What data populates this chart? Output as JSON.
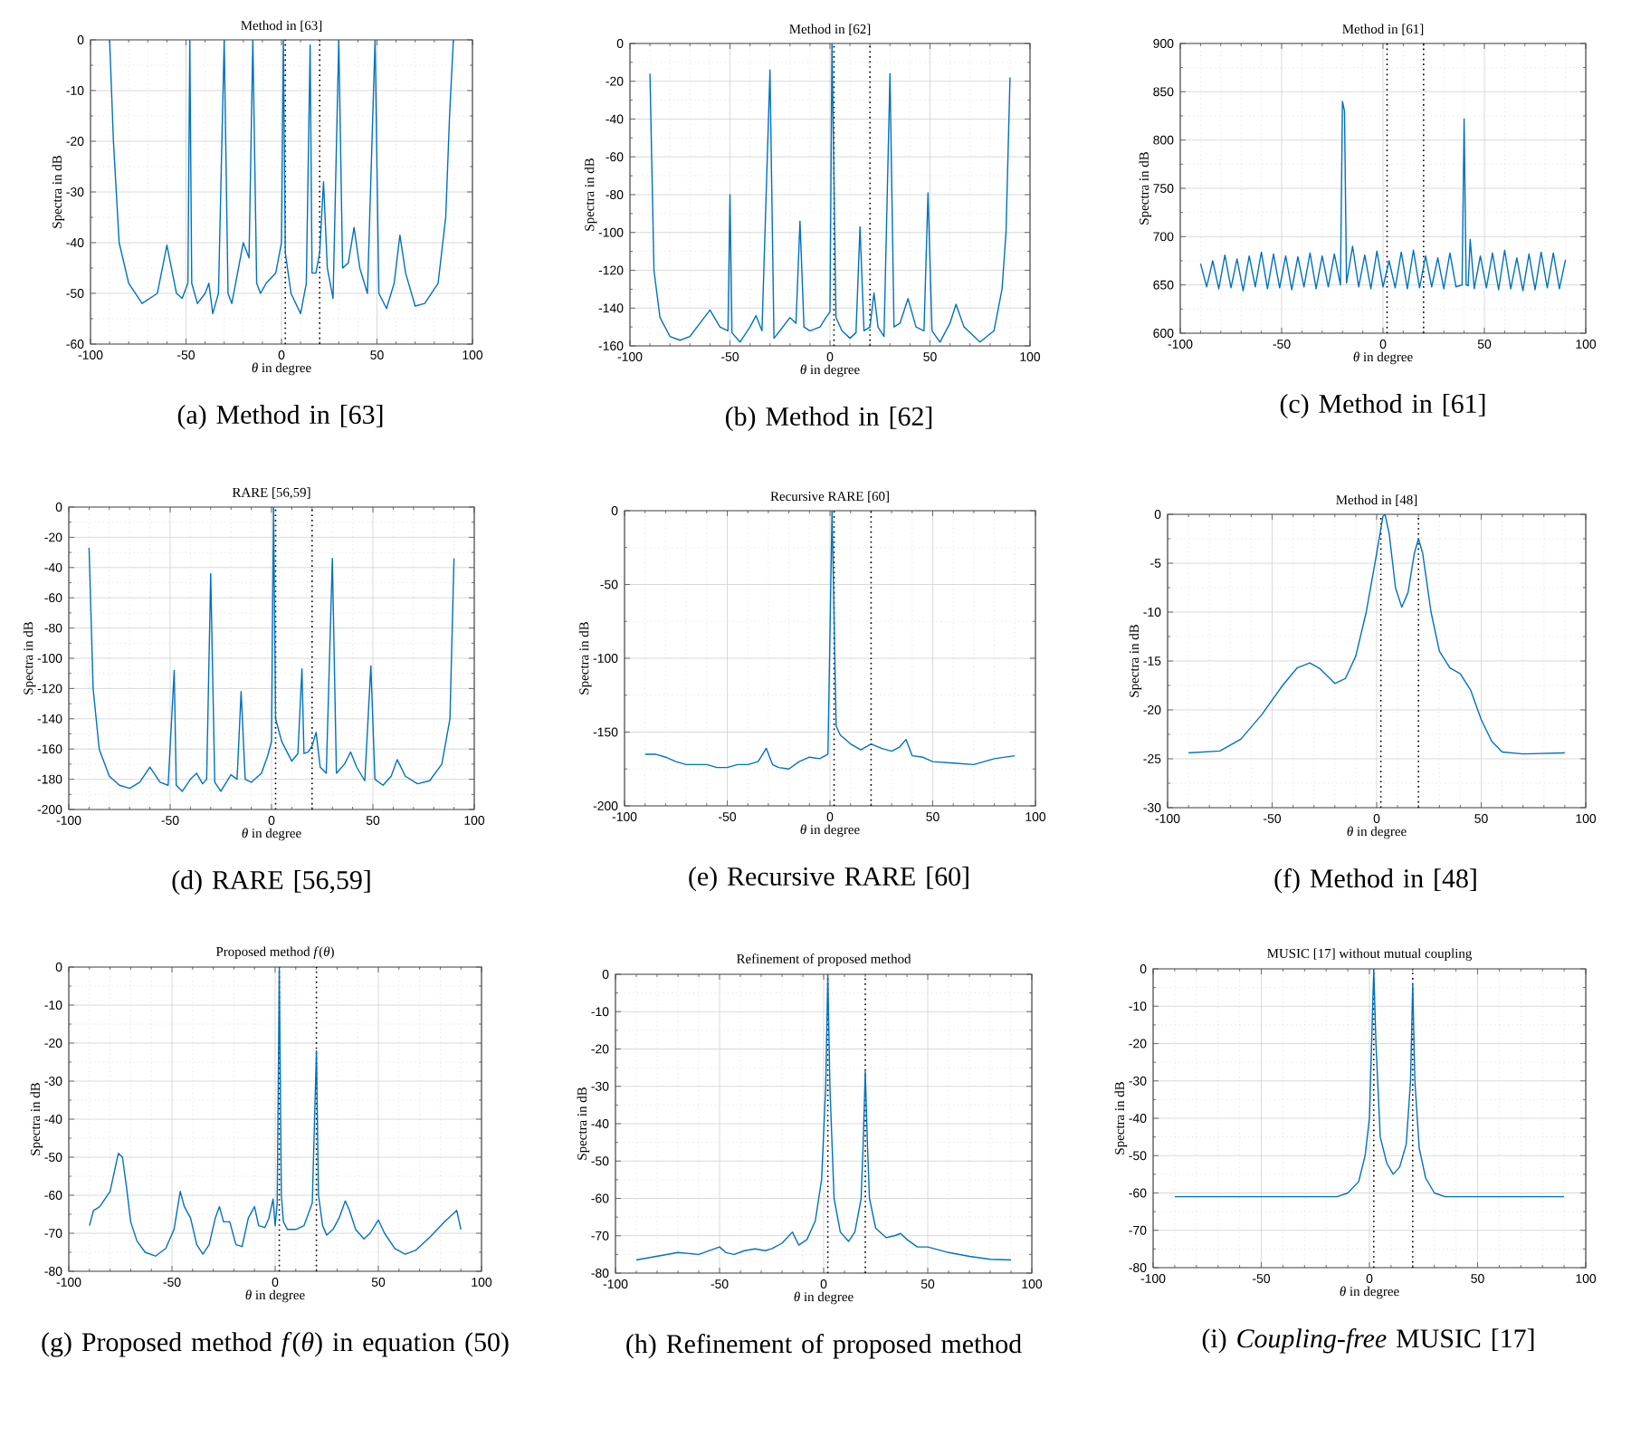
{
  "chart_data": [
    {
      "type": "line",
      "title": "Method in [63]",
      "xlabel": "*θ* in degree",
      "ylabel": "Spectra in dB",
      "xlim": [
        -100,
        100
      ],
      "ylim": [
        -60,
        0
      ],
      "xticks": [
        -100,
        -50,
        0,
        50,
        100
      ],
      "yticks": [
        -60,
        -50,
        -40,
        -30,
        -20,
        -10,
        0
      ],
      "grid": true,
      "color": "#0072bd",
      "x": [
        -90,
        -88,
        -85,
        -80,
        -73,
        -65,
        -60,
        -55,
        -52,
        -49,
        -48,
        -47,
        -44,
        -40,
        -38,
        -36,
        -33,
        -30,
        -28,
        -26,
        -24,
        -20,
        -17,
        -15,
        -13,
        -11,
        -8,
        -3,
        0,
        1,
        2,
        5,
        10,
        13,
        15,
        16,
        18,
        20,
        22,
        24,
        27,
        30,
        32,
        35,
        38,
        41,
        45,
        49,
        51,
        55,
        59,
        62,
        65,
        70,
        75,
        82,
        86,
        88,
        90
      ],
      "values": [
        0,
        -20,
        -40,
        -48,
        -52,
        -50,
        -40.5,
        -50,
        -51,
        -48,
        0,
        -48,
        -52,
        -50,
        -48,
        -54,
        -50,
        0,
        -50,
        -52,
        -48,
        -40,
        -43,
        0,
        -48,
        -50,
        -48,
        -46,
        -40,
        0,
        -42,
        -50,
        -54,
        -48,
        -1,
        -46,
        -46,
        -42,
        -28,
        -45,
        -51,
        0,
        -45,
        -44,
        -37,
        -45,
        -50,
        0,
        -50,
        -53,
        -48,
        -38.5,
        -46,
        -52.5,
        -52,
        -48,
        -35,
        -15,
        0
      ],
      "ref_lines": [
        {
          "axis": "x",
          "value": 2,
          "line_style": "dotted",
          "color": "#000000"
        },
        {
          "axis": "x",
          "value": 20,
          "line_style": "dotted",
          "color": "#000000"
        }
      ],
      "annotations": [
        "(a) Method in [63]"
      ]
    },
    {
      "type": "line",
      "title": "Method in [62]",
      "xlabel": "*θ* in degree",
      "ylabel": "Spectra in dB",
      "xlim": [
        -100,
        100
      ],
      "ylim": [
        -160,
        0
      ],
      "xticks": [
        -100,
        -50,
        0,
        50,
        100
      ],
      "yticks": [
        -160,
        -140,
        -120,
        -100,
        -80,
        -60,
        -40,
        -20,
        0
      ],
      "grid": true,
      "color": "#0072bd",
      "x": [
        -90,
        -88,
        -85,
        -80,
        -75,
        -70,
        -65,
        -60,
        -55,
        -51,
        -50,
        -49,
        -45,
        -40,
        -37,
        -34,
        -30,
        -28,
        -25,
        -20,
        -17,
        -15,
        -13,
        -10,
        -5,
        -2,
        0,
        1,
        3,
        6,
        10,
        13,
        15,
        17,
        20,
        22,
        24,
        27,
        30,
        32,
        35,
        39,
        43,
        47,
        49,
        51,
        55,
        60,
        63,
        67,
        75,
        82,
        86,
        88,
        90
      ],
      "values": [
        -16,
        -120,
        -145,
        -155,
        -157,
        -155,
        -148,
        -141,
        -150,
        -152,
        -80,
        -153,
        -158,
        -150,
        -144,
        -152,
        -14,
        -156,
        -152,
        -145,
        -148,
        -94,
        -150,
        -152,
        -150,
        -145,
        -142,
        0,
        -145,
        -152,
        -156,
        -153,
        -97,
        -152,
        -150,
        -132,
        -150,
        -155,
        -16,
        -150,
        -148,
        -135,
        -150,
        -152,
        -79,
        -152,
        -158,
        -148,
        -138,
        -150,
        -158,
        -152,
        -130,
        -100,
        -18
      ],
      "ref_lines": [
        {
          "axis": "x",
          "value": 2,
          "line_style": "dotted",
          "color": "#000000"
        },
        {
          "axis": "x",
          "value": 20,
          "line_style": "dotted",
          "color": "#000000"
        }
      ],
      "annotations": [
        "(b) Method in [62]"
      ]
    },
    {
      "type": "line",
      "title": "Method in [61]",
      "xlabel": "*θ* in degree",
      "ylabel": "Spectra in dB",
      "xlim": [
        -100,
        100
      ],
      "ylim": [
        600,
        900
      ],
      "xticks": [
        -100,
        -50,
        0,
        50,
        100
      ],
      "yticks": [
        600,
        650,
        700,
        750,
        800,
        850,
        900
      ],
      "grid": true,
      "color": "#0072bd",
      "x": [
        -90,
        -87,
        -84,
        -81,
        -78,
        -75,
        -72,
        -69,
        -66,
        -63,
        -60,
        -57,
        -54,
        -51,
        -48,
        -45,
        -42,
        -39,
        -36,
        -33,
        -30,
        -27,
        -24,
        -21,
        -20,
        -19,
        -18,
        -15,
        -12,
        -9,
        -6,
        -3,
        0,
        3,
        6,
        9,
        12,
        15,
        18,
        21,
        24,
        27,
        30,
        33,
        36,
        39,
        40,
        41,
        42,
        43,
        45,
        48,
        51,
        54,
        57,
        60,
        63,
        66,
        69,
        72,
        75,
        78,
        81,
        84,
        87,
        90
      ],
      "values": [
        672,
        648,
        675,
        646,
        681,
        647,
        677,
        644,
        680,
        648,
        684,
        646,
        682,
        647,
        680,
        645,
        679,
        648,
        683,
        646,
        680,
        648,
        682,
        650,
        840,
        830,
        652,
        690,
        648,
        681,
        646,
        685,
        648,
        675,
        647,
        684,
        646,
        686,
        647,
        680,
        648,
        678,
        646,
        683,
        648,
        650,
        822,
        650,
        649,
        697,
        646,
        680,
        647,
        683,
        645,
        686,
        646,
        678,
        644,
        682,
        645,
        684,
        647,
        683,
        646,
        676
      ],
      "ref_lines": [
        {
          "axis": "x",
          "value": 2,
          "line_style": "dotted",
          "color": "#000000"
        },
        {
          "axis": "x",
          "value": 20,
          "line_style": "dotted",
          "color": "#000000"
        }
      ],
      "annotations": [
        "(c) Method in [61]"
      ]
    },
    {
      "type": "line",
      "title": "RARE [56,59]",
      "xlabel": "*θ* in degree",
      "ylabel": "Spectra in dB",
      "xlim": [
        -100,
        100
      ],
      "ylim": [
        -200,
        0
      ],
      "xticks": [
        -100,
        -50,
        0,
        50,
        100
      ],
      "yticks": [
        -200,
        -180,
        -160,
        -140,
        -120,
        -100,
        -80,
        -60,
        -40,
        -20,
        0
      ],
      "grid": true,
      "color": "#0072bd",
      "x": [
        -90,
        -88,
        -85,
        -80,
        -75,
        -70,
        -65,
        -60,
        -55,
        -51,
        -48,
        -47,
        -44,
        -40,
        -37,
        -34,
        -32,
        -30,
        -28,
        -25,
        -20,
        -17,
        -15,
        -13,
        -10,
        -5,
        -2,
        0,
        1,
        2,
        5,
        10,
        13,
        15,
        16,
        18,
        20,
        22,
        24,
        27,
        30,
        32,
        36,
        39,
        42,
        46,
        49,
        51,
        55,
        59,
        62,
        66,
        72,
        78,
        84,
        88,
        90
      ],
      "values": [
        -27,
        -120,
        -160,
        -178,
        -184,
        -186,
        -182,
        -172,
        -182,
        -184,
        -108,
        -184,
        -188,
        -180,
        -176,
        -183,
        -180,
        -44,
        -182,
        -188,
        -177,
        -180,
        -122,
        -180,
        -182,
        -176,
        -165,
        -155,
        0,
        -140,
        -155,
        -168,
        -163,
        -107,
        -163,
        -162,
        -158,
        -149,
        -172,
        -176,
        -34,
        -176,
        -170,
        -162,
        -172,
        -181,
        -105,
        -180,
        -184,
        -178,
        -167,
        -178,
        -183,
        -181,
        -170,
        -140,
        -34
      ],
      "ref_lines": [
        {
          "axis": "x",
          "value": 2,
          "line_style": "dotted",
          "color": "#000000"
        },
        {
          "axis": "x",
          "value": 20,
          "line_style": "dotted",
          "color": "#000000"
        }
      ],
      "annotations": [
        "(d) RARE [56,59]"
      ]
    },
    {
      "type": "line",
      "title": "Recursive RARE [60]",
      "xlabel": "*θ* in degree",
      "ylabel": "Spectra in dB",
      "xlim": [
        -100,
        100
      ],
      "ylim": [
        -200,
        0
      ],
      "xticks": [
        -100,
        -50,
        0,
        50,
        100
      ],
      "yticks": [
        -200,
        -150,
        -100,
        -50,
        0
      ],
      "grid": true,
      "color": "#0072bd",
      "x": [
        -90,
        -85,
        -80,
        -75,
        -70,
        -60,
        -55,
        -50,
        -45,
        -40,
        -35,
        -31,
        -28,
        -25,
        -20,
        -15,
        -10,
        -5,
        -1,
        1,
        3,
        5,
        10,
        15,
        20,
        25,
        30,
        34,
        37,
        40,
        45,
        50,
        60,
        70,
        80,
        90
      ],
      "values": [
        -165,
        -165,
        -167,
        -170,
        -172,
        -172,
        -174,
        -174,
        -172,
        -172,
        -170,
        -161,
        -172,
        -174,
        -175,
        -170,
        -167,
        -168,
        -165,
        0,
        -146,
        -152,
        -158,
        -162,
        -158,
        -161,
        -163,
        -160,
        -155,
        -166,
        -167,
        -170,
        -171,
        -172,
        -168,
        -166
      ],
      "ref_lines": [
        {
          "axis": "x",
          "value": 2,
          "line_style": "dotted",
          "color": "#000000"
        },
        {
          "axis": "x",
          "value": 20,
          "line_style": "dotted",
          "color": "#000000"
        }
      ],
      "annotations": [
        "(e) Recursive RARE [60]"
      ]
    },
    {
      "type": "line",
      "title": "Method in [48]",
      "xlabel": "*θ* in degree",
      "ylabel": "Spectra in dB",
      "xlim": [
        -100,
        100
      ],
      "ylim": [
        -30,
        0
      ],
      "xticks": [
        -100,
        -50,
        0,
        50,
        100
      ],
      "yticks": [
        -30,
        -25,
        -20,
        -15,
        -10,
        -5,
        0
      ],
      "grid": true,
      "color": "#0072bd",
      "x": [
        -90,
        -75,
        -65,
        -55,
        -45,
        -38,
        -32,
        -27,
        -20,
        -15,
        -10,
        -5,
        0,
        3,
        4,
        6,
        9,
        12,
        15,
        18,
        20,
        22,
        26,
        30,
        35,
        40,
        45,
        50,
        55,
        60,
        70,
        90
      ],
      "values": [
        -24.4,
        -24.2,
        -23,
        -20.5,
        -17.5,
        -15.7,
        -15.2,
        -15.8,
        -17.3,
        -16.8,
        -14.5,
        -10,
        -4,
        -0.2,
        0,
        -2,
        -7.5,
        -9.5,
        -8,
        -4,
        -2.5,
        -4,
        -10,
        -14,
        -15.7,
        -16.3,
        -18,
        -21,
        -23.2,
        -24.3,
        -24.5,
        -24.4
      ],
      "ref_lines": [
        {
          "axis": "x",
          "value": 2,
          "line_style": "dotted",
          "color": "#000000"
        },
        {
          "axis": "x",
          "value": 20,
          "line_style": "dotted",
          "color": "#000000"
        }
      ],
      "annotations": [
        "(f) Method in [48]"
      ]
    },
    {
      "type": "line",
      "title": "Proposed method *f*(*θ*)",
      "xlabel": "*θ* in degree",
      "ylabel": "Spectra in dB",
      "xlim": [
        -100,
        100
      ],
      "ylim": [
        -80,
        0
      ],
      "xticks": [
        -100,
        -50,
        0,
        50,
        100
      ],
      "yticks": [
        -80,
        -70,
        -60,
        -50,
        -40,
        -30,
        -20,
        -10,
        0
      ],
      "grid": true,
      "color": "#0072bd",
      "x": [
        -90,
        -88,
        -85,
        -80,
        -76,
        -74,
        -72,
        -70,
        -67,
        -63,
        -58,
        -53,
        -49,
        -46,
        -44,
        -41,
        -38,
        -35,
        -32,
        -29,
        -27,
        -25,
        -22,
        -19,
        -16,
        -13,
        -10,
        -8,
        -5,
        -3,
        -1,
        0,
        1,
        2,
        3,
        4,
        6,
        10,
        14,
        18,
        20,
        21,
        23,
        25,
        28,
        31,
        34,
        36,
        39,
        43,
        46,
        50,
        53,
        58,
        63,
        68,
        75,
        82,
        88,
        90
      ],
      "values": [
        -68,
        -64,
        -63,
        -59,
        -49,
        -50,
        -58,
        -67,
        -72,
        -75,
        -76,
        -74,
        -69,
        -59,
        -63,
        -66,
        -73,
        -75.5,
        -73,
        -66,
        -63,
        -67,
        -67,
        -73,
        -73.5,
        -66,
        -63,
        -68,
        -68.5,
        -66,
        -61,
        -68,
        -62,
        0,
        -60,
        -67,
        -69,
        -69,
        -68,
        -62,
        -22,
        -60,
        -68,
        -70.5,
        -69,
        -66,
        -61.5,
        -64,
        -69,
        -71.5,
        -70,
        -66.5,
        -70,
        -74,
        -75.5,
        -74.5,
        -71,
        -67,
        -64,
        -69
      ],
      "ref_lines": [
        {
          "axis": "x",
          "value": 2,
          "line_style": "dotted",
          "color": "#000000"
        },
        {
          "axis": "x",
          "value": 20,
          "line_style": "dotted",
          "color": "#000000"
        }
      ],
      "annotations": [
        "(g) Proposed method *f*(*θ*) in equation (50)"
      ]
    },
    {
      "type": "line",
      "title": "Refinement of proposed method",
      "xlabel": "*θ* in degree",
      "ylabel": "Spectra in dB",
      "xlim": [
        -100,
        100
      ],
      "ylim": [
        -80,
        0
      ],
      "xticks": [
        -100,
        -50,
        0,
        50,
        100
      ],
      "yticks": [
        -80,
        -70,
        -60,
        -50,
        -40,
        -30,
        -20,
        -10,
        0
      ],
      "grid": true,
      "color": "#0072bd",
      "x": [
        -90,
        -80,
        -70,
        -60,
        -55,
        -50,
        -47,
        -43,
        -38,
        -33,
        -28,
        -25,
        -20,
        -15,
        -12,
        -8,
        -4,
        -1,
        1,
        2,
        3,
        5,
        8,
        12,
        15,
        18,
        19,
        20,
        21,
        22,
        25,
        30,
        34,
        37,
        40,
        45,
        50,
        60,
        70,
        80,
        90
      ],
      "values": [
        -76.5,
        -75.5,
        -74.5,
        -75,
        -74,
        -73,
        -74.5,
        -75,
        -74,
        -73.5,
        -74,
        -73.5,
        -72,
        -69,
        -72.5,
        -71,
        -66,
        -55,
        -30,
        0,
        -30,
        -60,
        -69,
        -71.5,
        -69,
        -60,
        -45,
        -26,
        -45,
        -60,
        -68,
        -70.5,
        -70,
        -69.4,
        -71,
        -73,
        -73,
        -74.5,
        -75.5,
        -76.3,
        -76.5
      ],
      "ref_lines": [
        {
          "axis": "x",
          "value": 2,
          "line_style": "dotted",
          "color": "#000000"
        },
        {
          "axis": "x",
          "value": 20,
          "line_style": "dotted",
          "color": "#000000"
        }
      ],
      "annotations": [
        "(h) Refinement of proposed method"
      ]
    },
    {
      "type": "line",
      "title": "MUSIC [17] without mutual coupling",
      "xlabel": "*θ* in degree",
      "ylabel": "Spectra in dB",
      "xlim": [
        -100,
        100
      ],
      "ylim": [
        -80,
        0
      ],
      "xticks": [
        -100,
        -50,
        0,
        50,
        100
      ],
      "yticks": [
        -80,
        -70,
        -60,
        -50,
        -40,
        -30,
        -20,
        -10,
        0
      ],
      "grid": true,
      "color": "#0072bd",
      "x": [
        -90,
        -60,
        -40,
        -20,
        -15,
        -10,
        -5,
        -2,
        0,
        1,
        2,
        3,
        5,
        8,
        11,
        14,
        17,
        19,
        20,
        21,
        23,
        26,
        30,
        35,
        50,
        90
      ],
      "values": [
        -61,
        -61,
        -61,
        -61,
        -61,
        -60,
        -57,
        -50,
        -40,
        -20,
        0,
        -20,
        -45,
        -52,
        -55,
        -53,
        -47,
        -30,
        -4,
        -30,
        -48,
        -56,
        -60,
        -61,
        -61,
        -61
      ],
      "ref_lines": [
        {
          "axis": "x",
          "value": 2,
          "line_style": "dotted",
          "color": "#000000"
        },
        {
          "axis": "x",
          "value": 20,
          "line_style": "dotted",
          "color": "#000000"
        }
      ],
      "annotations": [
        "(i) *Coupling-free* MUSIC [17]"
      ]
    }
  ]
}
